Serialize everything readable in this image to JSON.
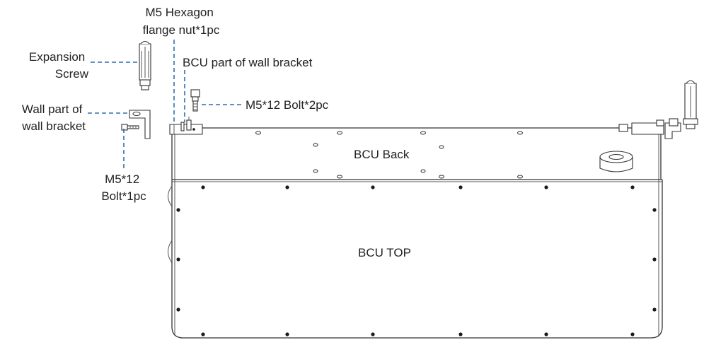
{
  "labels": {
    "hex_nut": [
      "M5 Hexagon",
      "flange nut*1pc"
    ],
    "expansion_screw": [
      "Expansion",
      "Screw"
    ],
    "bcu_part_bracket": "BCU part of wall bracket",
    "wall_part_bracket": [
      "Wall part of",
      "wall bracket"
    ],
    "m5_bolt_2pc": "M5*12 Bolt*2pc",
    "m5_bolt_1pc": [
      "M5*12",
      "Bolt*1pc"
    ],
    "bcu_back": "BCU Back",
    "bcu_top": "BCU TOP"
  },
  "colors": {
    "leader_line": "#2e6fb0",
    "outline": "#333333"
  }
}
